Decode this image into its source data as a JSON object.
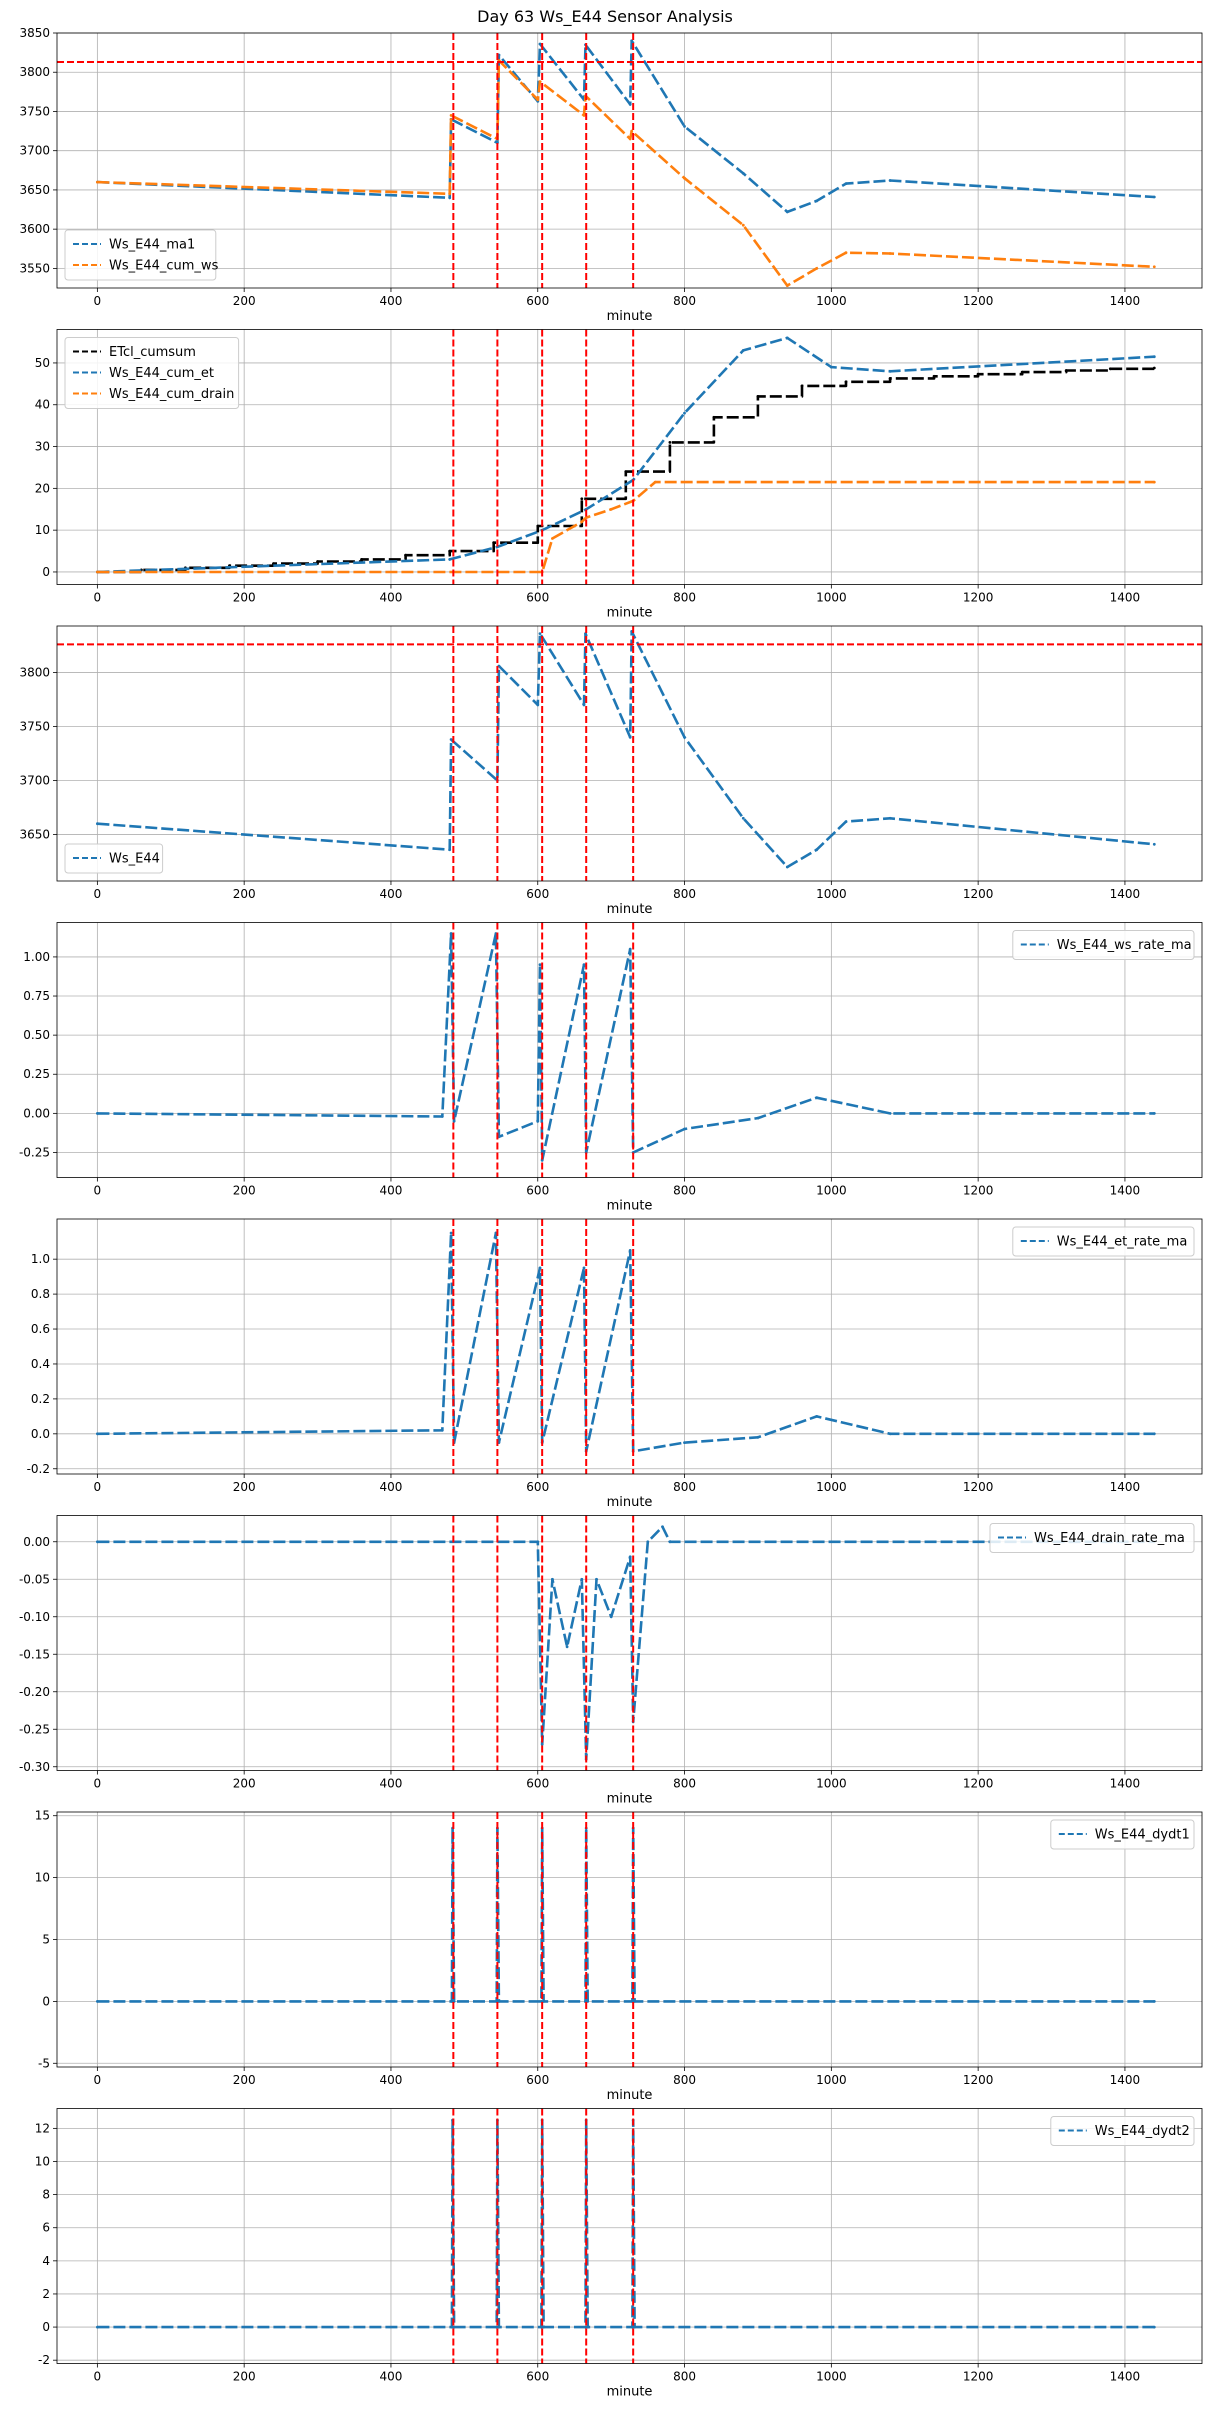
{
  "figure_title": "Day 63 Ws_E44 Sensor Analysis",
  "colors": {
    "blue": "#1f77b4",
    "orange": "#ff7f0e",
    "black": "#000000",
    "red": "#ff0000",
    "grid": "#b0b0b0"
  },
  "vlines": [
    485,
    545,
    606,
    666,
    730
  ],
  "chart_data": [
    {
      "type": "line",
      "xlabel": "minute",
      "xlim": [
        -55,
        1505
      ],
      "ylim": [
        3525,
        3850
      ],
      "xticks": [
        0,
        200,
        400,
        600,
        800,
        1000,
        1200,
        1400
      ],
      "yticks": [
        3550,
        3600,
        3650,
        3700,
        3750,
        3800,
        3850
      ],
      "ytick_labels": [
        "3550",
        "3600",
        "3650",
        "3700",
        "3750",
        "3800",
        "3850"
      ],
      "hline": 3813,
      "legend_loc": "lower-left",
      "series": [
        {
          "name": "Ws_E44_ma1",
          "color": "blue",
          "points": [
            [
              0,
              3660
            ],
            [
              480,
              3640
            ],
            [
              482,
              3740
            ],
            [
              545,
              3710
            ],
            [
              547,
              3822
            ],
            [
              600,
              3763
            ],
            [
              603,
              3836
            ],
            [
              663,
              3765
            ],
            [
              665,
              3835
            ],
            [
              726,
              3759
            ],
            [
              728,
              3840
            ],
            [
              800,
              3731
            ],
            [
              880,
              3671
            ],
            [
              940,
              3622
            ],
            [
              980,
              3636
            ],
            [
              1020,
              3658
            ],
            [
              1080,
              3662
            ],
            [
              1440,
              3641
            ]
          ]
        },
        {
          "name": "Ws_E44_cum_ws",
          "color": "orange",
          "points": [
            [
              0,
              3660
            ],
            [
              480,
              3645
            ],
            [
              482,
              3745
            ],
            [
              545,
              3715
            ],
            [
              547,
              3815
            ],
            [
              600,
              3765
            ],
            [
              603,
              3788
            ],
            [
              663,
              3745
            ],
            [
              665,
              3770
            ],
            [
              726,
              3715
            ],
            [
              728,
              3725
            ],
            [
              800,
              3665
            ],
            [
              880,
              3605
            ],
            [
              940,
              3528
            ],
            [
              980,
              3550
            ],
            [
              1020,
              3570
            ],
            [
              1080,
              3569
            ],
            [
              1440,
              3552
            ]
          ]
        }
      ]
    },
    {
      "type": "line",
      "xlabel": "minute",
      "xlim": [
        -55,
        1505
      ],
      "ylim": [
        -3,
        58
      ],
      "xticks": [
        0,
        200,
        400,
        600,
        800,
        1000,
        1200,
        1400
      ],
      "yticks": [
        0,
        10,
        20,
        30,
        40,
        50
      ],
      "ytick_labels": [
        "0",
        "10",
        "20",
        "30",
        "40",
        "50"
      ],
      "legend_loc": "upper-left",
      "series": [
        {
          "name": "ETcl_cumsum",
          "color": "black",
          "step": true,
          "points": [
            [
              0,
              0
            ],
            [
              60,
              0.5
            ],
            [
              120,
              1
            ],
            [
              180,
              1.5
            ],
            [
              240,
              2
            ],
            [
              300,
              2.5
            ],
            [
              360,
              3
            ],
            [
              420,
              4
            ],
            [
              480,
              5
            ],
            [
              540,
              7
            ],
            [
              600,
              11
            ],
            [
              660,
              17.5
            ],
            [
              720,
              24
            ],
            [
              780,
              31
            ],
            [
              840,
              37
            ],
            [
              900,
              42
            ],
            [
              960,
              44.5
            ],
            [
              1020,
              45.5
            ],
            [
              1080,
              46.3
            ],
            [
              1140,
              46.8
            ],
            [
              1200,
              47.3
            ],
            [
              1260,
              47.8
            ],
            [
              1320,
              48.2
            ],
            [
              1380,
              48.6
            ],
            [
              1440,
              48.8
            ]
          ]
        },
        {
          "name": "Ws_E44_cum_et",
          "color": "blue",
          "points": [
            [
              0,
              0
            ],
            [
              480,
              3
            ],
            [
              545,
              6
            ],
            [
              606,
              10
            ],
            [
              666,
              15
            ],
            [
              730,
              22
            ],
            [
              800,
              38
            ],
            [
              880,
              53
            ],
            [
              940,
              56
            ],
            [
              1000,
              49
            ],
            [
              1080,
              48
            ],
            [
              1440,
              51.5
            ]
          ]
        },
        {
          "name": "Ws_E44_cum_drain",
          "color": "orange",
          "points": [
            [
              0,
              0
            ],
            [
              606,
              0
            ],
            [
              620,
              8
            ],
            [
              660,
              12
            ],
            [
              666,
              13
            ],
            [
              700,
              15
            ],
            [
              730,
              17
            ],
            [
              760,
              21.5
            ],
            [
              1440,
              21.5
            ]
          ]
        }
      ]
    },
    {
      "type": "line",
      "xlabel": "minute",
      "xlim": [
        -55,
        1505
      ],
      "ylim": [
        3607,
        3843
      ],
      "xticks": [
        0,
        200,
        400,
        600,
        800,
        1000,
        1200,
        1400
      ],
      "yticks": [
        3650,
        3700,
        3750,
        3800
      ],
      "ytick_labels": [
        "3650",
        "3700",
        "3750",
        "3800"
      ],
      "hline": 3826,
      "legend_loc": "lower-left",
      "series": [
        {
          "name": "Ws_E44",
          "color": "blue",
          "points": [
            [
              0,
              3660
            ],
            [
              480,
              3636
            ],
            [
              482,
              3738
            ],
            [
              545,
              3700
            ],
            [
              547,
              3806
            ],
            [
              600,
              3770
            ],
            [
              603,
              3836
            ],
            [
              663,
              3770
            ],
            [
              665,
              3836
            ],
            [
              726,
              3740
            ],
            [
              728,
              3838
            ],
            [
              800,
              3740
            ],
            [
              880,
              3665
            ],
            [
              940,
              3620
            ],
            [
              980,
              3636
            ],
            [
              1020,
              3662
            ],
            [
              1080,
              3665
            ],
            [
              1440,
              3641
            ]
          ]
        }
      ]
    },
    {
      "type": "line",
      "xlabel": "minute",
      "xlim": [
        -55,
        1505
      ],
      "ylim": [
        -0.41,
        1.22
      ],
      "xticks": [
        0,
        200,
        400,
        600,
        800,
        1000,
        1200,
        1400
      ],
      "yticks": [
        -0.25,
        0.0,
        0.25,
        0.5,
        0.75,
        1.0
      ],
      "ytick_labels": [
        "-0.25",
        "0.00",
        "0.25",
        "0.50",
        "0.75",
        "1.00"
      ],
      "legend_loc": "upper-right",
      "series": [
        {
          "name": "Ws_E44_ws_rate_ma",
          "color": "blue",
          "points": [
            [
              0,
              0
            ],
            [
              470,
              -0.02
            ],
            [
              482,
              1.15
            ],
            [
              486,
              -0.05
            ],
            [
              543,
              1.15
            ],
            [
              547,
              -0.15
            ],
            [
              600,
              -0.05
            ],
            [
              603,
              0.95
            ],
            [
              606,
              -0.3
            ],
            [
              663,
              0.95
            ],
            [
              666,
              -0.25
            ],
            [
              726,
              1.05
            ],
            [
              730,
              -0.25
            ],
            [
              800,
              -0.1
            ],
            [
              900,
              -0.03
            ],
            [
              980,
              0.1
            ],
            [
              1080,
              0
            ],
            [
              1440,
              0
            ]
          ]
        }
      ]
    },
    {
      "type": "line",
      "xlabel": "minute",
      "xlim": [
        -55,
        1505
      ],
      "ylim": [
        -0.23,
        1.23
      ],
      "xticks": [
        0,
        200,
        400,
        600,
        800,
        1000,
        1200,
        1400
      ],
      "yticks": [
        -0.2,
        0.0,
        0.2,
        0.4,
        0.6,
        0.8,
        1.0
      ],
      "ytick_labels": [
        "-0.2",
        "0.0",
        "0.2",
        "0.4",
        "0.6",
        "0.8",
        "1.0"
      ],
      "legend_loc": "upper-right",
      "series": [
        {
          "name": "Ws_E44_et_rate_ma",
          "color": "blue",
          "points": [
            [
              0,
              0
            ],
            [
              470,
              0.02
            ],
            [
              482,
              1.15
            ],
            [
              486,
              -0.05
            ],
            [
              543,
              1.15
            ],
            [
              547,
              -0.05
            ],
            [
              603,
              0.95
            ],
            [
              606,
              -0.05
            ],
            [
              663,
              0.95
            ],
            [
              666,
              -0.1
            ],
            [
              726,
              1.05
            ],
            [
              730,
              -0.1
            ],
            [
              800,
              -0.05
            ],
            [
              900,
              -0.02
            ],
            [
              980,
              0.1
            ],
            [
              1080,
              0
            ],
            [
              1440,
              0
            ]
          ]
        }
      ]
    },
    {
      "type": "line",
      "xlabel": "minute",
      "xlim": [
        -55,
        1505
      ],
      "ylim": [
        -0.305,
        0.035
      ],
      "xticks": [
        0,
        200,
        400,
        600,
        800,
        1000,
        1200,
        1400
      ],
      "yticks": [
        -0.3,
        -0.25,
        -0.2,
        -0.15,
        -0.1,
        -0.05,
        0.0
      ],
      "ytick_labels": [
        "-0.30",
        "-0.25",
        "-0.20",
        "-0.15",
        "-0.10",
        "-0.05",
        "0.00"
      ],
      "legend_loc": "upper-right",
      "series": [
        {
          "name": "Ws_E44_drain_rate_ma",
          "color": "blue",
          "points": [
            [
              0,
              0
            ],
            [
              600,
              0
            ],
            [
              606,
              -0.27
            ],
            [
              620,
              -0.05
            ],
            [
              640,
              -0.14
            ],
            [
              660,
              -0.05
            ],
            [
              666,
              -0.29
            ],
            [
              680,
              -0.05
            ],
            [
              700,
              -0.1
            ],
            [
              726,
              -0.02
            ],
            [
              730,
              -0.24
            ],
            [
              750,
              0
            ],
            [
              770,
              0.02
            ],
            [
              780,
              0
            ],
            [
              1440,
              0
            ]
          ]
        }
      ]
    },
    {
      "type": "line",
      "xlabel": "minute",
      "xlim": [
        -55,
        1505
      ],
      "ylim": [
        -5.3,
        15.3
      ],
      "xticks": [
        0,
        200,
        400,
        600,
        800,
        1000,
        1200,
        1400
      ],
      "yticks": [
        -5,
        0,
        5,
        10,
        15
      ],
      "ytick_labels": [
        "-5",
        "0",
        "5",
        "10",
        "15"
      ],
      "legend_loc": "upper-right",
      "series": [
        {
          "name": "Ws_E44_dydt1",
          "color": "blue",
          "points": [
            [
              0,
              0
            ],
            [
              483,
              0
            ],
            [
              484,
              14
            ],
            [
              486,
              0
            ],
            [
              544,
              0
            ],
            [
              545,
              14
            ],
            [
              547,
              0
            ],
            [
              605,
              0
            ],
            [
              606,
              14
            ],
            [
              608,
              0
            ],
            [
              665,
              0
            ],
            [
              666,
              14
            ],
            [
              668,
              0
            ],
            [
              729,
              0
            ],
            [
              730,
              14
            ],
            [
              732,
              0
            ],
            [
              1440,
              0
            ]
          ]
        }
      ]
    },
    {
      "type": "line",
      "xlabel": "minute",
      "xlim": [
        -55,
        1505
      ],
      "ylim": [
        -2.2,
        13.2
      ],
      "xticks": [
        0,
        200,
        400,
        600,
        800,
        1000,
        1200,
        1400
      ],
      "yticks": [
        -2,
        0,
        2,
        4,
        6,
        8,
        10,
        12
      ],
      "ytick_labels": [
        "-2",
        "0",
        "2",
        "4",
        "6",
        "8",
        "10",
        "12"
      ],
      "legend_loc": "upper-right",
      "series": [
        {
          "name": "Ws_E44_dydt2",
          "color": "blue",
          "points": [
            [
              0,
              0
            ],
            [
              483,
              0
            ],
            [
              484,
              12.5
            ],
            [
              486,
              0
            ],
            [
              544,
              0
            ],
            [
              545,
              12.5
            ],
            [
              547,
              0
            ],
            [
              605,
              0
            ],
            [
              606,
              12.5
            ],
            [
              608,
              0
            ],
            [
              665,
              0
            ],
            [
              666,
              12.5
            ],
            [
              668,
              0
            ],
            [
              729,
              0
            ],
            [
              730,
              12.5
            ],
            [
              732,
              0
            ],
            [
              1440,
              0
            ]
          ]
        }
      ]
    }
  ]
}
